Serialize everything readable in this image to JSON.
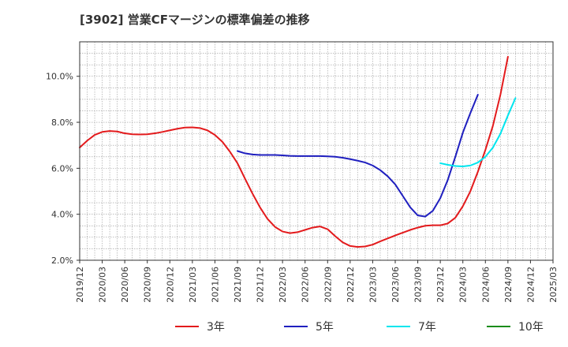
{
  "chart_data": {
    "type": "line",
    "title": "[3902]  営業CFマージンの標準偏差の推移",
    "xlabel": "",
    "ylabel": "",
    "y_unit": "%",
    "ylim": [
      2.0,
      11.5
    ],
    "y_ticks": [
      2.0,
      4.0,
      6.0,
      8.0,
      10.0
    ],
    "y_tick_labels": [
      "2.0%",
      "4.0%",
      "6.0%",
      "8.0%",
      "10.0%"
    ],
    "x_tick_labels": [
      "2019/12",
      "2020/03",
      "2020/06",
      "2020/09",
      "2020/12",
      "2021/03",
      "2021/06",
      "2021/09",
      "2021/12",
      "2022/03",
      "2022/06",
      "2022/09",
      "2022/12",
      "2023/03",
      "2023/06",
      "2023/09",
      "2023/12",
      "2024/03",
      "2024/06",
      "2024/09",
      "2024/12",
      "2025/03"
    ],
    "grid": true,
    "legend_position": "bottom",
    "series": [
      {
        "name": "3年",
        "color": "#e31a1c",
        "points": [
          [
            "2019/12",
            6.9
          ],
          [
            "2020/01",
            7.2
          ],
          [
            "2020/02",
            7.45
          ],
          [
            "2020/03",
            7.58
          ],
          [
            "2020/04",
            7.62
          ],
          [
            "2020/05",
            7.6
          ],
          [
            "2020/06",
            7.52
          ],
          [
            "2020/07",
            7.48
          ],
          [
            "2020/08",
            7.47
          ],
          [
            "2020/09",
            7.48
          ],
          [
            "2020/10",
            7.52
          ],
          [
            "2020/11",
            7.58
          ],
          [
            "2020/12",
            7.65
          ],
          [
            "2021/01",
            7.72
          ],
          [
            "2021/02",
            7.77
          ],
          [
            "2021/03",
            7.78
          ],
          [
            "2021/04",
            7.75
          ],
          [
            "2021/05",
            7.65
          ],
          [
            "2021/06",
            7.45
          ],
          [
            "2021/07",
            7.15
          ],
          [
            "2021/08",
            6.72
          ],
          [
            "2021/09",
            6.22
          ],
          [
            "2021/10",
            5.55
          ],
          [
            "2021/11",
            4.9
          ],
          [
            "2021/12",
            4.3
          ],
          [
            "2022/01",
            3.8
          ],
          [
            "2022/02",
            3.45
          ],
          [
            "2022/03",
            3.25
          ],
          [
            "2022/04",
            3.18
          ],
          [
            "2022/05",
            3.22
          ],
          [
            "2022/06",
            3.32
          ],
          [
            "2022/07",
            3.42
          ],
          [
            "2022/08",
            3.47
          ],
          [
            "2022/09",
            3.35
          ],
          [
            "2022/10",
            3.05
          ],
          [
            "2022/11",
            2.78
          ],
          [
            "2022/12",
            2.62
          ],
          [
            "2023/01",
            2.58
          ],
          [
            "2023/02",
            2.6
          ],
          [
            "2023/03",
            2.68
          ],
          [
            "2023/04",
            2.82
          ],
          [
            "2023/05",
            2.95
          ],
          [
            "2023/06",
            3.08
          ],
          [
            "2023/07",
            3.2
          ],
          [
            "2023/08",
            3.32
          ],
          [
            "2023/09",
            3.42
          ],
          [
            "2023/10",
            3.5
          ],
          [
            "2023/11",
            3.52
          ],
          [
            "2023/12",
            3.52
          ],
          [
            "2024/01",
            3.6
          ],
          [
            "2024/02",
            3.85
          ],
          [
            "2024/03",
            4.35
          ],
          [
            "2024/04",
            5.0
          ],
          [
            "2024/05",
            5.85
          ],
          [
            "2024/06",
            6.8
          ],
          [
            "2024/07",
            7.85
          ],
          [
            "2024/08",
            9.2
          ],
          [
            "2024/09",
            10.85
          ]
        ]
      },
      {
        "name": "5年",
        "color": "#1f1fbf",
        "points": [
          [
            "2021/09",
            6.75
          ],
          [
            "2021/10",
            6.65
          ],
          [
            "2021/11",
            6.6
          ],
          [
            "2021/12",
            6.58
          ],
          [
            "2022/01",
            6.58
          ],
          [
            "2022/02",
            6.58
          ],
          [
            "2022/03",
            6.56
          ],
          [
            "2022/04",
            6.54
          ],
          [
            "2022/05",
            6.53
          ],
          [
            "2022/06",
            6.53
          ],
          [
            "2022/07",
            6.53
          ],
          [
            "2022/08",
            6.53
          ],
          [
            "2022/09",
            6.52
          ],
          [
            "2022/10",
            6.5
          ],
          [
            "2022/11",
            6.46
          ],
          [
            "2022/12",
            6.4
          ],
          [
            "2023/01",
            6.33
          ],
          [
            "2023/02",
            6.25
          ],
          [
            "2023/03",
            6.12
          ],
          [
            "2023/04",
            5.92
          ],
          [
            "2023/05",
            5.65
          ],
          [
            "2023/06",
            5.3
          ],
          [
            "2023/07",
            4.8
          ],
          [
            "2023/08",
            4.3
          ],
          [
            "2023/09",
            3.95
          ],
          [
            "2023/10",
            3.9
          ],
          [
            "2023/11",
            4.15
          ],
          [
            "2023/12",
            4.7
          ],
          [
            "2024/01",
            5.5
          ],
          [
            "2024/02",
            6.5
          ],
          [
            "2024/03",
            7.55
          ],
          [
            "2024/04",
            8.4
          ],
          [
            "2024/05",
            9.2
          ]
        ]
      },
      {
        "name": "7年",
        "color": "#00e5ee",
        "points": [
          [
            "2023/12",
            6.22
          ],
          [
            "2024/01",
            6.15
          ],
          [
            "2024/02",
            6.1
          ],
          [
            "2024/03",
            6.08
          ],
          [
            "2024/04",
            6.12
          ],
          [
            "2024/05",
            6.25
          ],
          [
            "2024/06",
            6.5
          ],
          [
            "2024/07",
            6.9
          ],
          [
            "2024/08",
            7.5
          ],
          [
            "2024/09",
            8.3
          ],
          [
            "2024/10",
            9.05
          ]
        ]
      },
      {
        "name": "10年",
        "color": "#1a8c1a",
        "points": []
      }
    ]
  }
}
